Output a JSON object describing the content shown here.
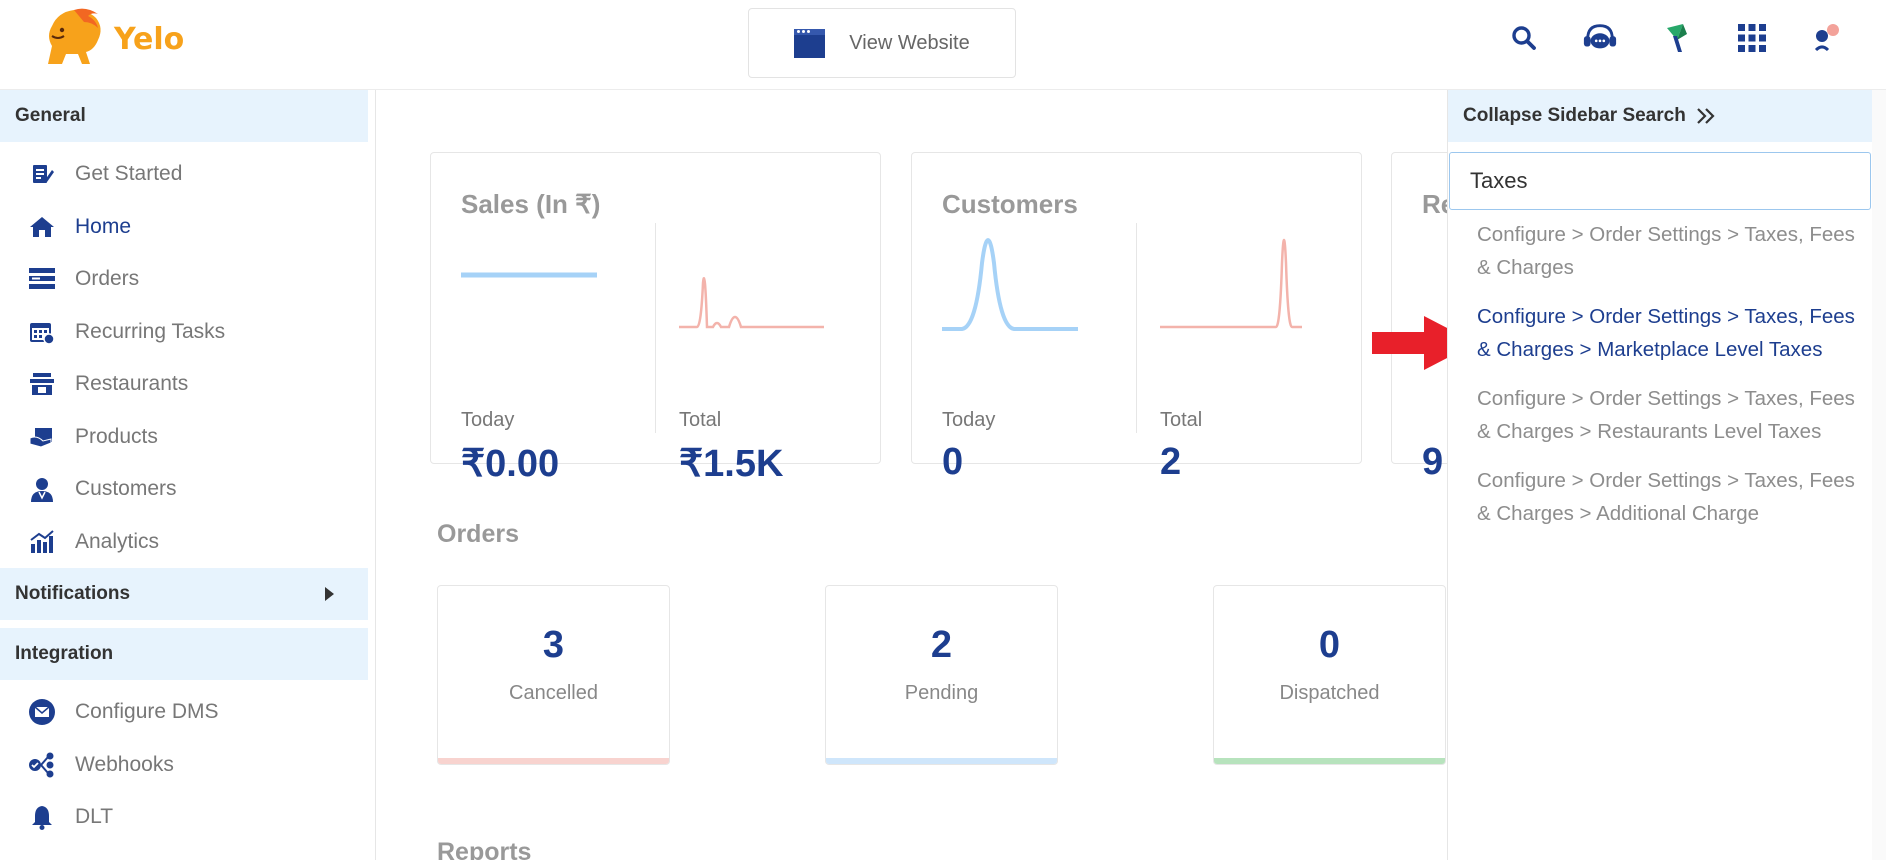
{
  "header": {
    "logo_text": "Yelo",
    "view_website_label": "View Website",
    "icons": [
      "search-icon",
      "support-chat-icon",
      "leaf-app-icon",
      "grid-apps-icon",
      "profile-icon"
    ]
  },
  "sidebar": {
    "general_label": "General",
    "general_items": [
      {
        "label": "Get Started",
        "icon": "get-started-icon"
      },
      {
        "label": "Home",
        "icon": "home-icon",
        "active": true
      },
      {
        "label": "Orders",
        "icon": "orders-icon"
      },
      {
        "label": "Recurring Tasks",
        "icon": "calendar-icon"
      },
      {
        "label": "Restaurants",
        "icon": "store-icon"
      },
      {
        "label": "Products",
        "icon": "products-icon"
      },
      {
        "label": "Customers",
        "icon": "customer-icon"
      },
      {
        "label": "Analytics",
        "icon": "analytics-icon"
      }
    ],
    "notifications_label": "Notifications",
    "integration_label": "Integration",
    "integration_items": [
      {
        "label": "Configure DMS",
        "icon": "mail-icon"
      },
      {
        "label": "Webhooks",
        "icon": "webhooks-icon"
      },
      {
        "label": "DLT",
        "icon": "bell-icon"
      }
    ]
  },
  "dashboard": {
    "cards": [
      {
        "title": "Sales (In ₹)",
        "today_label": "Today",
        "today_value": "₹0.00",
        "total_label": "Total",
        "total_value": "₹1.5K"
      },
      {
        "title": "Customers",
        "today_label": "Today",
        "today_value": "0",
        "total_label": "Total",
        "total_value": "2"
      },
      {
        "title": "Re",
        "value_partial": "9"
      }
    ],
    "orders_title": "Orders",
    "orders": [
      {
        "value": "3",
        "label": "Cancelled",
        "color": "#f8d3cf"
      },
      {
        "value": "2",
        "label": "Pending",
        "color": "#cfe6fb"
      },
      {
        "value": "0",
        "label": "Dispatched",
        "color": "#b7e3bd"
      }
    ],
    "reports_title": "Reports"
  },
  "right_panel": {
    "header_label": "Collapse Sidebar Search",
    "search_value": "Taxes",
    "results": [
      "Configure > Order Settings > Taxes, Fees & Charges",
      "Configure > Order Settings > Taxes, Fees & Charges > Marketplace Level Taxes",
      "Configure > Order Settings > Taxes, Fees & Charges > Restaurants Level Taxes",
      "Configure > Order Settings > Taxes, Fees & Charges > Additional Charge"
    ],
    "highlighted_index": 1
  },
  "colors": {
    "accent": "#1d3e8f",
    "section_bg": "#e7f3fd",
    "spark_blue": "#a6d2f7",
    "spark_red": "#f3b3ab",
    "arrow_red": "#e8202a"
  }
}
